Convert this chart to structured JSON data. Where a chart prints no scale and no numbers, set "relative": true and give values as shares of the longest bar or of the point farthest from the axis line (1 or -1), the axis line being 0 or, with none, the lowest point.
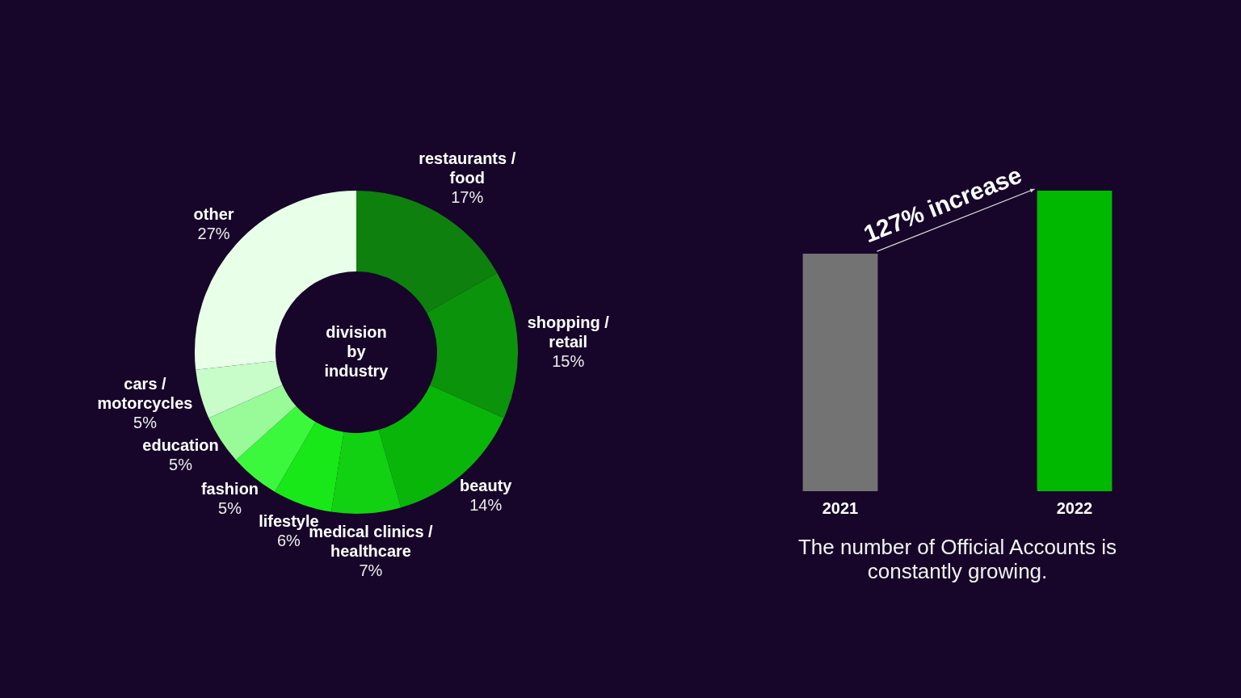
{
  "chart_data": [
    {
      "type": "donut",
      "title": "division by industry",
      "categories": [
        "restaurants / food",
        "shopping / retail",
        "beauty",
        "medical clinics / healthcare",
        "lifestyle",
        "fashion",
        "education",
        "cars / motorcycles",
        "other"
      ],
      "values": [
        17,
        15,
        14,
        7,
        6,
        5,
        5,
        5,
        27
      ],
      "value_labels": [
        "17%",
        "15%",
        "14%",
        "7%",
        "6%",
        "5%",
        "5%",
        "5%",
        "27%"
      ],
      "colors": [
        "#0e800e",
        "#0b930b",
        "#0ab50a",
        "#12d012",
        "#18e818",
        "#3cf83c",
        "#98fb98",
        "#c8fcc8",
        "#e8ffe8"
      ]
    },
    {
      "type": "bar",
      "categories": [
        "2021",
        "2022"
      ],
      "values": [
        0.79,
        1
      ],
      "colors": [
        "#737373",
        "#00b800"
      ],
      "relative": true,
      "annotations": [
        "127% increase",
        "The number of Official Accounts is constantly growing."
      ]
    }
  ]
}
